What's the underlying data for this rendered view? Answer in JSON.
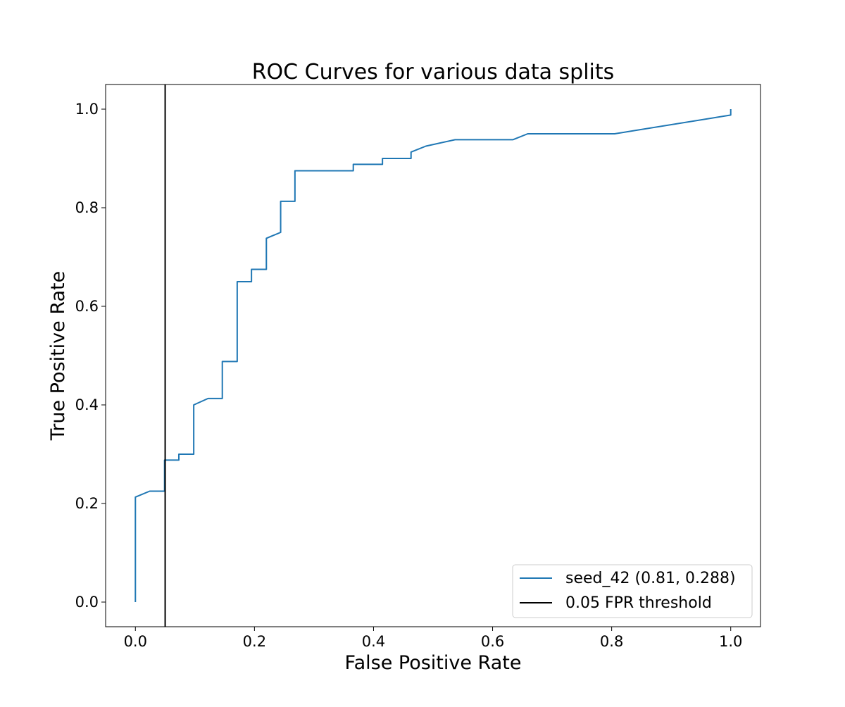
{
  "chart_data": {
    "type": "line",
    "title": "ROC Curves for various data splits",
    "xlabel": "False Positive Rate",
    "ylabel": "True Positive Rate",
    "xlim": [
      -0.05,
      1.05
    ],
    "ylim": [
      -0.05,
      1.05
    ],
    "x_ticks": [
      0.0,
      0.2,
      0.4,
      0.6,
      0.8,
      1.0
    ],
    "y_ticks": [
      0.0,
      0.2,
      0.4,
      0.6,
      0.8,
      1.0
    ],
    "x_tick_labels": [
      "0.0",
      "0.2",
      "0.4",
      "0.6",
      "0.8",
      "1.0"
    ],
    "y_tick_labels": [
      "0.0",
      "0.2",
      "0.4",
      "0.6",
      "0.8",
      "1.0"
    ],
    "grid": false,
    "legend_position": "bottom-right",
    "series": [
      {
        "name": "seed_42 (0.81, 0.288)",
        "color": "#1f77b4",
        "points": [
          [
            0.0,
            0.0
          ],
          [
            0.0,
            0.213
          ],
          [
            0.024,
            0.225
          ],
          [
            0.049,
            0.225
          ],
          [
            0.049,
            0.288
          ],
          [
            0.073,
            0.288
          ],
          [
            0.073,
            0.3
          ],
          [
            0.098,
            0.3
          ],
          [
            0.098,
            0.4
          ],
          [
            0.122,
            0.413
          ],
          [
            0.146,
            0.413
          ],
          [
            0.146,
            0.488
          ],
          [
            0.171,
            0.488
          ],
          [
            0.171,
            0.65
          ],
          [
            0.195,
            0.65
          ],
          [
            0.195,
            0.675
          ],
          [
            0.22,
            0.675
          ],
          [
            0.22,
            0.738
          ],
          [
            0.244,
            0.75
          ],
          [
            0.244,
            0.813
          ],
          [
            0.268,
            0.813
          ],
          [
            0.268,
            0.875
          ],
          [
            0.366,
            0.875
          ],
          [
            0.366,
            0.888
          ],
          [
            0.415,
            0.888
          ],
          [
            0.415,
            0.9
          ],
          [
            0.463,
            0.9
          ],
          [
            0.463,
            0.913
          ],
          [
            0.488,
            0.925
          ],
          [
            0.537,
            0.938
          ],
          [
            0.634,
            0.938
          ],
          [
            0.659,
            0.95
          ],
          [
            0.805,
            0.95
          ],
          [
            1.0,
            0.988
          ],
          [
            1.0,
            1.0
          ]
        ]
      }
    ],
    "reference_lines": [
      {
        "name": "0.05 FPR threshold",
        "orientation": "vertical",
        "x": 0.05,
        "color": "#000000"
      }
    ]
  }
}
